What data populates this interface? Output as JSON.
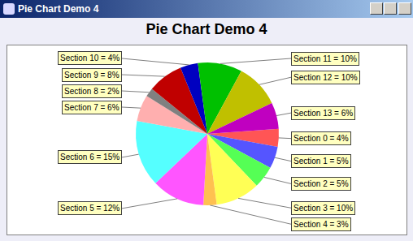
{
  "chart_data": {
    "type": "pie",
    "title": "Pie Chart Demo 4",
    "categories": [
      "Section 0 = 4%",
      "Section 1 = 5%",
      "Section 2 = 5%",
      "Section 3 = 10%",
      "Section 4 = 3%",
      "Section 5 = 12%",
      "Section 6 = 15%",
      "Section 7 = 6%",
      "Section 8 = 2%",
      "Section 9 = 8%",
      "Section 10 = 4%",
      "Section 11 = 10%",
      "Section 12 = 10%",
      "Section 13 = 6%"
    ],
    "values": [
      4,
      5,
      5,
      10,
      3,
      12,
      15,
      6,
      2,
      8,
      4,
      10,
      10,
      6
    ],
    "colors": [
      "#ff5555",
      "#5555ff",
      "#55ff55",
      "#ffff55",
      "#ffc050",
      "#ff55ff",
      "#55ffff",
      "#ffafaf",
      "#808080",
      "#c00000",
      "#0000c0",
      "#00c000",
      "#c0c000",
      "#c000c0"
    ]
  }
}
